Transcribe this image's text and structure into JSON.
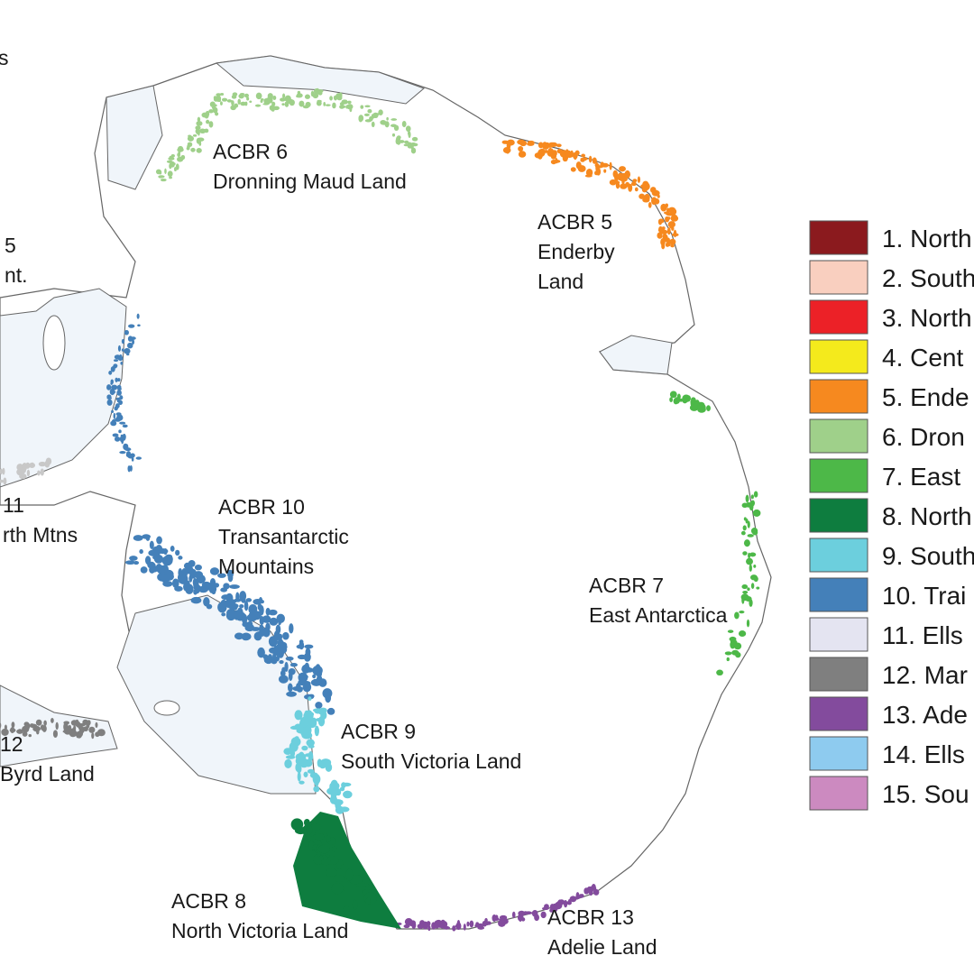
{
  "labels": [
    {
      "lines": [
        "s"
      ]
    },
    {
      "lines": [
        "5",
        "nt."
      ]
    },
    {
      "lines": [
        "ACBR 6",
        "Dronning Maud Land"
      ]
    },
    {
      "lines": [
        "ACBR 5",
        "Enderby",
        "Land"
      ]
    },
    {
      "lines": [
        "11",
        "rth Mtns"
      ]
    },
    {
      "lines": [
        "ACBR 10",
        "Transantarctic",
        "Mountains"
      ]
    },
    {
      "lines": [
        "ACBR 7",
        "East Antarctica"
      ]
    },
    {
      "lines": [
        "12",
        "Byrd Land"
      ]
    },
    {
      "lines": [
        "ACBR 9",
        "South Victoria Land"
      ]
    },
    {
      "lines": [
        "ACBR 8",
        "North Victoria Land"
      ]
    },
    {
      "lines": [
        "ACBR 13",
        "Adelie Land"
      ]
    }
  ],
  "legend": [
    {
      "label": "1. North",
      "color": "#8b1a1e"
    },
    {
      "label": "2. South",
      "color": "#f9cfbf"
    },
    {
      "label": "3. North",
      "color": "#ec2127"
    },
    {
      "label": "4. Cent",
      "color": "#f4ea1c"
    },
    {
      "label": "5. Ende",
      "color": "#f6891f"
    },
    {
      "label": "6. Dron",
      "color": "#9fd08a"
    },
    {
      "label": "7. East",
      "color": "#4db848"
    },
    {
      "label": "8. North",
      "color": "#0e7d3f"
    },
    {
      "label": "9. South",
      "color": "#6ccfdd"
    },
    {
      "label": "10. Trai",
      "color": "#4480b9"
    },
    {
      "label": "11. Ells",
      "color": "#e4e4f1"
    },
    {
      "label": "12. Mar",
      "color": "#7f7f7f"
    },
    {
      "label": "13. Ade",
      "color": "#834b9d"
    },
    {
      "label": "14. Ells",
      "color": "#8ecbef"
    },
    {
      "label": "15. Sou",
      "color": "#cc8ac0"
    }
  ]
}
